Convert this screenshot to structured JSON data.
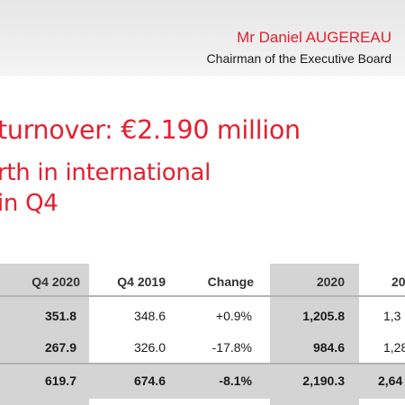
{
  "header": {
    "speaker_name": "Mr Daniel AUGEREAU",
    "speaker_role": "Chairman of the Executive Board"
  },
  "headline": {
    "line1": "turnover: €2.190 million",
    "line2": "rth in international",
    "line3": "in Q4"
  },
  "colors": {
    "accent": "#e3202e",
    "shade": "#d4d4d4"
  },
  "table": {
    "columns": [
      "Q4 2020",
      "Q4 2019",
      "Change",
      "2020",
      "20"
    ],
    "rows": [
      [
        "351.8",
        "348.6",
        "+0.9%",
        "1,205.8",
        "1,3"
      ],
      [
        "267.9",
        "326.0",
        "-17.8%",
        "984.6",
        "1,28"
      ],
      [
        "619.7",
        "674.6",
        "-8.1%",
        "2,190.3",
        "2,64"
      ]
    ]
  }
}
